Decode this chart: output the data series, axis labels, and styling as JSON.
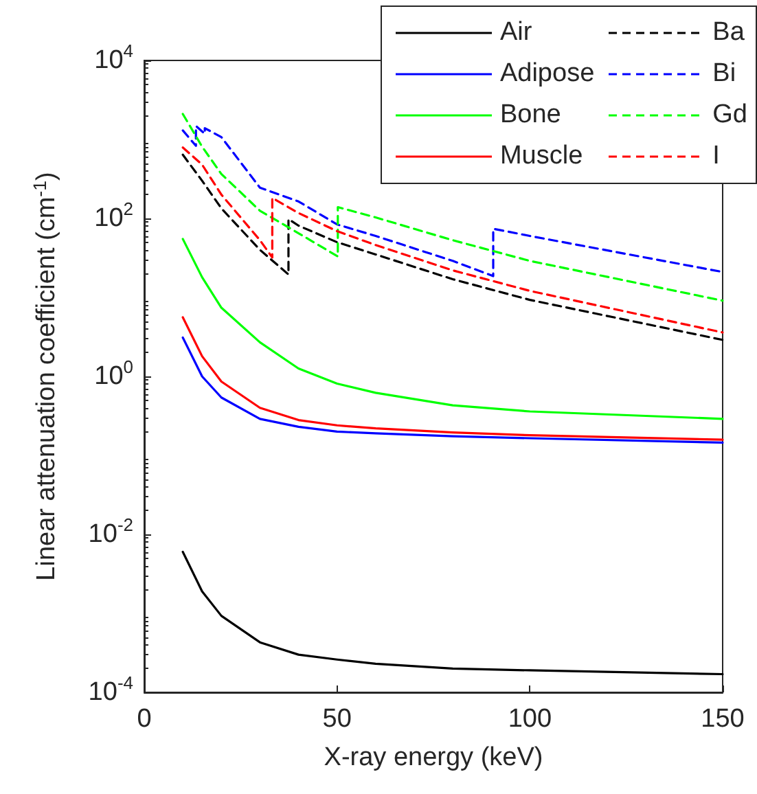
{
  "chart_data": {
    "type": "line",
    "xlabel": "X-ray energy (keV)",
    "ylabel": "Linear attenuation coefficient (cm$^{-1}$)",
    "xlim": [
      0,
      150
    ],
    "xticks": [
      0,
      50,
      100,
      150
    ],
    "ylim": [
      0.0001,
      10000
    ],
    "log": "y",
    "yticks": [
      {
        "value": 0.0001,
        "label": "10$^{-4}$"
      },
      {
        "value": 0.01,
        "label": "10$^{-2}$"
      },
      {
        "value": 1,
        "label": "10$^{0}$"
      },
      {
        "value": 100,
        "label": "10$^{2}$"
      },
      {
        "value": 10000,
        "label": "10$^{4}$"
      }
    ],
    "grid": false,
    "legend": "top right",
    "marker": "none",
    "series": [
      {
        "name": "Air",
        "color": "#000000",
        "line_style": "solid",
        "x": [
          10,
          15,
          20,
          30,
          40,
          50,
          60,
          80,
          100,
          150
        ],
        "values": [
          0.006,
          0.0019,
          0.00093,
          0.00043,
          0.0003,
          0.00026,
          0.00023,
          0.0002,
          0.00019,
          0.00017
        ]
      },
      {
        "name": "Adipose",
        "color": "#0000ff",
        "line_style": "solid",
        "x": [
          10,
          15,
          20,
          30,
          40,
          50,
          60,
          80,
          100,
          150
        ],
        "values": [
          3.1,
          1.0,
          0.54,
          0.29,
          0.23,
          0.2,
          0.19,
          0.175,
          0.165,
          0.145
        ]
      },
      {
        "name": "Bone",
        "color": "#00ff00",
        "line_style": "solid",
        "x": [
          10,
          15,
          20,
          30,
          40,
          50,
          60,
          80,
          100,
          150
        ],
        "values": [
          55,
          18,
          7.4,
          2.7,
          1.26,
          0.81,
          0.62,
          0.43,
          0.36,
          0.29
        ]
      },
      {
        "name": "Muscle",
        "color": "#ff0000",
        "line_style": "solid",
        "x": [
          10,
          15,
          20,
          30,
          40,
          50,
          60,
          80,
          100,
          150
        ],
        "values": [
          5.6,
          1.8,
          0.86,
          0.4,
          0.28,
          0.24,
          0.22,
          0.195,
          0.18,
          0.158
        ]
      },
      {
        "name": "Ba",
        "color": "#000000",
        "line_style": "dashed",
        "x": [
          10,
          15,
          20,
          30,
          37.4,
          37.4,
          40,
          50,
          60,
          80,
          100,
          150
        ],
        "values": [
          640,
          300,
          134,
          40,
          19.5,
          98,
          81,
          50,
          35,
          17,
          9.3,
          2.9
        ]
      },
      {
        "name": "Bi",
        "color": "#0000ff",
        "line_style": "dashed",
        "x": [
          10,
          13.4,
          13.4,
          15.7,
          15.7,
          20,
          30,
          40,
          50,
          60,
          80,
          90.5,
          90.5,
          100,
          150
        ],
        "values": [
          1300,
          830,
          1480,
          1180,
          1390,
          1070,
          245,
          164,
          84,
          60,
          29,
          18.6,
          74,
          60,
          21
        ]
      },
      {
        "name": "Gd",
        "color": "#00ff00",
        "line_style": "dashed",
        "x": [
          10,
          15,
          20,
          30,
          40,
          50.2,
          50.2,
          60,
          80,
          100,
          150
        ],
        "values": [
          2100,
          810,
          365,
          125,
          65,
          33,
          139,
          103,
          53,
          29,
          9.1
        ]
      },
      {
        "name": "I",
        "color": "#ff0000",
        "line_style": "dashed",
        "x": [
          10,
          15,
          20,
          30,
          33.2,
          33.2,
          40,
          50,
          60,
          80,
          100,
          150
        ],
        "values": [
          790,
          480,
          200,
          53,
          32,
          182,
          117,
          69,
          46,
          22,
          12.1,
          3.6
        ]
      }
    ]
  }
}
